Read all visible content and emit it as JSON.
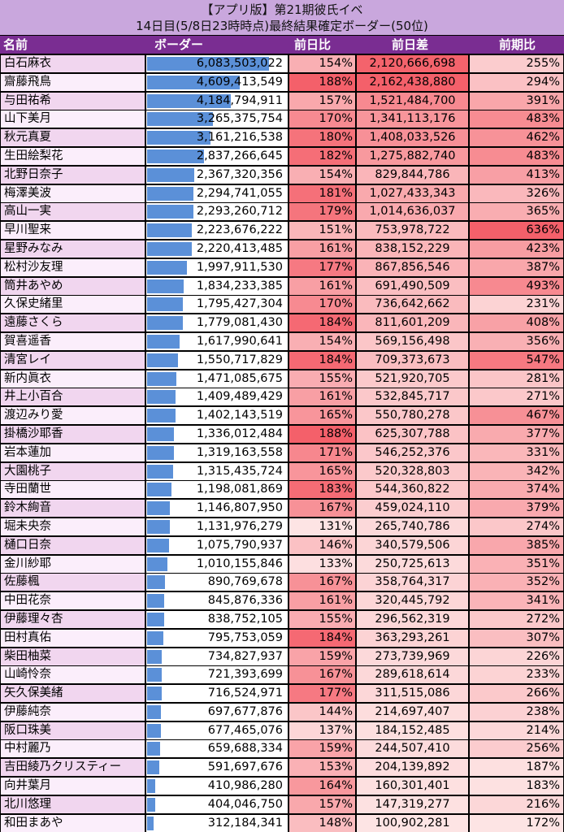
{
  "title": {
    "line1": "【アプリ版】第21期彼氏イベ",
    "line2": "14日目(5/8日23時時点)最終結果確定ボーダー(50位)"
  },
  "headers": {
    "name": "名前",
    "border": "ボーダー",
    "day_ratio": "前日比",
    "day_diff": "前日差",
    "period_ratio": "前期比"
  },
  "colors": {
    "title_bg": "#c9a7dd",
    "header_bg": "#7a2d92",
    "name_bg_odd": "#f1d6ef",
    "name_bg_even": "#fbeefb",
    "border_bar": "#5b90d8",
    "heat_low": "#fde4e4",
    "heat_high": "#f4606a"
  },
  "table": {
    "max_border": 6083503022,
    "rows": [
      {
        "name": "白石麻衣",
        "border": "6,083,503,022",
        "border_value": 6083503022,
        "day_ratio": "154%",
        "day_diff": "2,120,666,698",
        "period_ratio": "255%"
      },
      {
        "name": "齋藤飛鳥",
        "border": "4,609,413,549",
        "border_value": 4609413549,
        "day_ratio": "188%",
        "day_diff": "2,162,438,880",
        "period_ratio": "294%"
      },
      {
        "name": "与田祐希",
        "border": "4,184,794,911",
        "border_value": 4184794911,
        "day_ratio": "157%",
        "day_diff": "1,521,484,700",
        "period_ratio": "391%"
      },
      {
        "name": "山下美月",
        "border": "3,265,375,754",
        "border_value": 3265375754,
        "day_ratio": "170%",
        "day_diff": "1,341,113,176",
        "period_ratio": "483%"
      },
      {
        "name": "秋元真夏",
        "border": "3,161,216,538",
        "border_value": 3161216538,
        "day_ratio": "180%",
        "day_diff": "1,408,033,526",
        "period_ratio": "462%"
      },
      {
        "name": "生田絵梨花",
        "border": "2,837,266,645",
        "border_value": 2837266645,
        "day_ratio": "182%",
        "day_diff": "1,275,882,740",
        "period_ratio": "483%"
      },
      {
        "name": "北野日奈子",
        "border": "2,367,320,356",
        "border_value": 2367320356,
        "day_ratio": "154%",
        "day_diff": "829,844,786",
        "period_ratio": "413%"
      },
      {
        "name": "梅澤美波",
        "border": "2,294,741,055",
        "border_value": 2294741055,
        "day_ratio": "181%",
        "day_diff": "1,027,433,343",
        "period_ratio": "326%"
      },
      {
        "name": "高山一実",
        "border": "2,293,260,712",
        "border_value": 2293260712,
        "day_ratio": "179%",
        "day_diff": "1,014,636,037",
        "period_ratio": "365%"
      },
      {
        "name": "早川聖来",
        "border": "2,223,676,222",
        "border_value": 2223676222,
        "day_ratio": "151%",
        "day_diff": "753,978,722",
        "period_ratio": "636%"
      },
      {
        "name": "星野みなみ",
        "border": "2,220,413,485",
        "border_value": 2220413485,
        "day_ratio": "161%",
        "day_diff": "838,152,229",
        "period_ratio": "423%"
      },
      {
        "name": "松村沙友理",
        "border": "1,997,911,530",
        "border_value": 1997911530,
        "day_ratio": "177%",
        "day_diff": "867,856,546",
        "period_ratio": "387%"
      },
      {
        "name": "筒井あやめ",
        "border": "1,834,233,385",
        "border_value": 1834233385,
        "day_ratio": "161%",
        "day_diff": "691,490,509",
        "period_ratio": "493%"
      },
      {
        "name": "久保史緒里",
        "border": "1,795,427,304",
        "border_value": 1795427304,
        "day_ratio": "170%",
        "day_diff": "736,642,662",
        "period_ratio": "231%"
      },
      {
        "name": "遠藤さくら",
        "border": "1,779,081,430",
        "border_value": 1779081430,
        "day_ratio": "184%",
        "day_diff": "811,601,209",
        "period_ratio": "408%"
      },
      {
        "name": "賀喜遥香",
        "border": "1,617,990,641",
        "border_value": 1617990641,
        "day_ratio": "154%",
        "day_diff": "569,156,498",
        "period_ratio": "356%"
      },
      {
        "name": "清宮レイ",
        "border": "1,550,717,829",
        "border_value": 1550717829,
        "day_ratio": "184%",
        "day_diff": "709,373,673",
        "period_ratio": "547%"
      },
      {
        "name": "新内眞衣",
        "border": "1,471,085,675",
        "border_value": 1471085675,
        "day_ratio": "155%",
        "day_diff": "521,920,705",
        "period_ratio": "281%"
      },
      {
        "name": "井上小百合",
        "border": "1,409,489,429",
        "border_value": 1409489429,
        "day_ratio": "161%",
        "day_diff": "532,845,717",
        "period_ratio": "271%"
      },
      {
        "name": "渡辺みり愛",
        "border": "1,402,143,519",
        "border_value": 1402143519,
        "day_ratio": "165%",
        "day_diff": "550,780,278",
        "period_ratio": "467%"
      },
      {
        "name": "掛橋沙耶香",
        "border": "1,336,012,484",
        "border_value": 1336012484,
        "day_ratio": "188%",
        "day_diff": "625,307,788",
        "period_ratio": "377%"
      },
      {
        "name": "岩本蓮加",
        "border": "1,319,163,558",
        "border_value": 1319163558,
        "day_ratio": "171%",
        "day_diff": "546,252,376",
        "period_ratio": "331%"
      },
      {
        "name": "大園桃子",
        "border": "1,315,435,724",
        "border_value": 1315435724,
        "day_ratio": "165%",
        "day_diff": "520,328,803",
        "period_ratio": "342%"
      },
      {
        "name": "寺田蘭世",
        "border": "1,198,081,869",
        "border_value": 1198081869,
        "day_ratio": "183%",
        "day_diff": "544,360,822",
        "period_ratio": "374%"
      },
      {
        "name": "鈴木絢音",
        "border": "1,146,807,950",
        "border_value": 1146807950,
        "day_ratio": "167%",
        "day_diff": "459,024,110",
        "period_ratio": "379%"
      },
      {
        "name": "堀未央奈",
        "border": "1,131,976,279",
        "border_value": 1131976279,
        "day_ratio": "131%",
        "day_diff": "265,740,786",
        "period_ratio": "274%"
      },
      {
        "name": "樋口日奈",
        "border": "1,075,790,937",
        "border_value": 1075790937,
        "day_ratio": "146%",
        "day_diff": "340,579,506",
        "period_ratio": "385%"
      },
      {
        "name": "金川紗耶",
        "border": "1,010,155,846",
        "border_value": 1010155846,
        "day_ratio": "133%",
        "day_diff": "250,725,613",
        "period_ratio": "351%"
      },
      {
        "name": "佐藤楓",
        "border": "890,769,678",
        "border_value": 890769678,
        "day_ratio": "167%",
        "day_diff": "358,764,317",
        "period_ratio": "352%"
      },
      {
        "name": "中田花奈",
        "border": "845,876,336",
        "border_value": 845876336,
        "day_ratio": "161%",
        "day_diff": "320,445,792",
        "period_ratio": "341%"
      },
      {
        "name": "伊藤理々杏",
        "border": "838,752,105",
        "border_value": 838752105,
        "day_ratio": "155%",
        "day_diff": "296,562,319",
        "period_ratio": "272%"
      },
      {
        "name": "田村真佑",
        "border": "795,753,059",
        "border_value": 795753059,
        "day_ratio": "184%",
        "day_diff": "363,293,261",
        "period_ratio": "307%"
      },
      {
        "name": "柴田柚菜",
        "border": "734,827,937",
        "border_value": 734827937,
        "day_ratio": "159%",
        "day_diff": "273,739,969",
        "period_ratio": "226%"
      },
      {
        "name": "山崎怜奈",
        "border": "721,393,699",
        "border_value": 721393699,
        "day_ratio": "167%",
        "day_diff": "289,618,614",
        "period_ratio": "233%"
      },
      {
        "name": "矢久保美緒",
        "border": "716,524,971",
        "border_value": 716524971,
        "day_ratio": "177%",
        "day_diff": "311,515,086",
        "period_ratio": "266%"
      },
      {
        "name": "伊藤純奈",
        "border": "697,677,876",
        "border_value": 697677876,
        "day_ratio": "144%",
        "day_diff": "214,697,407",
        "period_ratio": "238%"
      },
      {
        "name": "阪口珠美",
        "border": "677,465,076",
        "border_value": 677465076,
        "day_ratio": "137%",
        "day_diff": "184,152,485",
        "period_ratio": "214%"
      },
      {
        "name": "中村麗乃",
        "border": "659,688,334",
        "border_value": 659688334,
        "day_ratio": "159%",
        "day_diff": "244,507,410",
        "period_ratio": "256%"
      },
      {
        "name": "吉田綾乃クリスティー",
        "border": "591,697,676",
        "border_value": 591697676,
        "day_ratio": "153%",
        "day_diff": "204,139,892",
        "period_ratio": "187%"
      },
      {
        "name": "向井葉月",
        "border": "410,986,280",
        "border_value": 410986280,
        "day_ratio": "164%",
        "day_diff": "160,301,401",
        "period_ratio": "183%"
      },
      {
        "name": "北川悠理",
        "border": "404,046,750",
        "border_value": 404046750,
        "day_ratio": "157%",
        "day_diff": "147,319,277",
        "period_ratio": "216%"
      },
      {
        "name": "和田まあや",
        "border": "312,184,341",
        "border_value": 312184341,
        "day_ratio": "148%",
        "day_diff": "100,902,281",
        "period_ratio": "172%"
      }
    ]
  }
}
